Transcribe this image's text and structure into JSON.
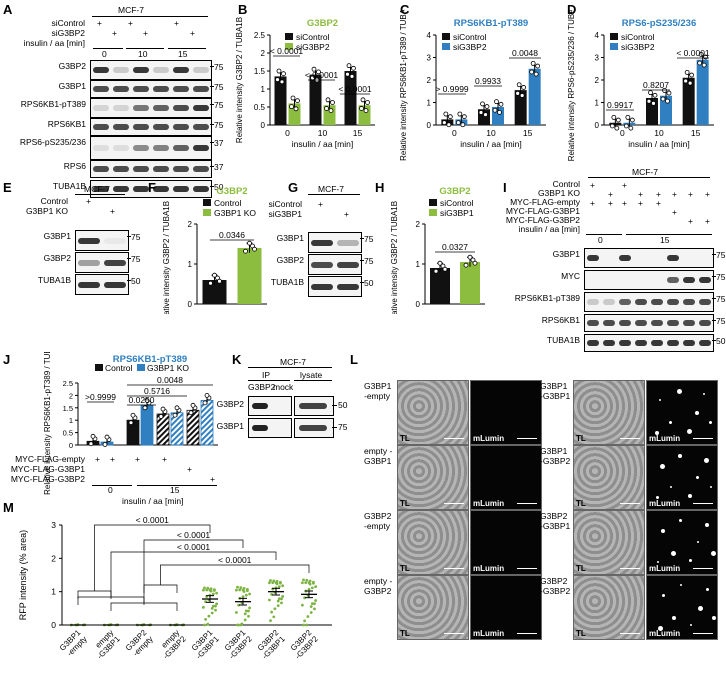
{
  "panels": {
    "A": {
      "letter": "A",
      "cell_line": "MCF-7",
      "conditions": [
        "siControl",
        "siG3BP2",
        "insulin / aa [min]"
      ],
      "siControl_marks": [
        "+",
        "",
        "+",
        "",
        "+",
        ""
      ],
      "siG3BP2_marks": [
        "",
        "+",
        "",
        "+",
        "",
        "+"
      ],
      "times": [
        "0",
        "10",
        "15"
      ],
      "blots": [
        {
          "label": "G3BP2",
          "mw": "75"
        },
        {
          "label": "G3BP1",
          "mw": "75"
        },
        {
          "label": "RPS6KB1-pT389",
          "mw": "75"
        },
        {
          "label": "RPS6KB1",
          "mw": "75"
        },
        {
          "label": "RPS6-pS235/236",
          "mw": "37"
        },
        {
          "label": "RPS6",
          "mw": "37"
        },
        {
          "label": "TUBA1B",
          "mw": "50"
        }
      ]
    },
    "B": {
      "letter": "B",
      "title": "G3BP2",
      "ylabel": "Relative intensity G3BP2 / TUBA1B",
      "xlabel": "insulin / aa [min]",
      "legend": [
        "siControl",
        "siG3BP2"
      ],
      "stats": [
        "< 0.0001",
        "< 0.0001",
        "< 0.0001"
      ]
    },
    "C": {
      "letter": "C",
      "title": "RPS6KB1-pT389",
      "ylabel": "Relative intensity RPS6KB1-pT389 / TUBA1B",
      "xlabel": "insulin / aa [min]",
      "legend": [
        "siControl",
        "siG3BP2"
      ],
      "stats": [
        "> 0.9999",
        "0.9933",
        "0.0048"
      ]
    },
    "D": {
      "letter": "D",
      "title": "RPS6-pS235/236",
      "ylabel": "Relative intensity RPS6-pS235/236 / TUBA1B",
      "xlabel": "insulin / aa [min]",
      "legend": [
        "siControl",
        "siG3BP2"
      ],
      "stats": [
        "0.9917",
        "0.8207",
        "< 0.0001"
      ]
    },
    "E": {
      "letter": "E",
      "cell_line": "MCF-7",
      "conditions": [
        "Control",
        "G3BP1 KO"
      ],
      "blots": [
        {
          "label": "G3BP1",
          "mw": "75"
        },
        {
          "label": "G3BP2",
          "mw": "75"
        },
        {
          "label": "TUBA1B",
          "mw": "50"
        }
      ]
    },
    "F": {
      "letter": "F",
      "title": "G3BP2",
      "ylabel": "Relative intensity G3BP2 / TUBA1B",
      "legend": [
        "Control",
        "G3BP1 KO"
      ],
      "stat": "0.0346"
    },
    "G": {
      "letter": "G",
      "cell_line": "MCF-7",
      "conditions": [
        "siControl",
        "siG3BP1"
      ],
      "blots": [
        {
          "label": "G3BP1",
          "mw": "75"
        },
        {
          "label": "G3BP2",
          "mw": "75"
        },
        {
          "label": "TUBA1B",
          "mw": "50"
        }
      ]
    },
    "H": {
      "letter": "H",
      "title": "G3BP2",
      "ylabel": "Relative intensity G3BP2 / TUBA1B",
      "legend": [
        "siControl",
        "siG3BP1"
      ],
      "stat": "0.0327"
    },
    "I": {
      "letter": "I",
      "cell_line": "MCF-7",
      "conditions": [
        "Control",
        "G3BP1 KO",
        "MYC-FLAG-empty",
        "MYC-FLAG-G3BP1",
        "MYC-FLAG-G3BP2",
        "insulin / aa [min]"
      ],
      "times": [
        "0",
        "15"
      ],
      "blots": [
        {
          "label": "G3BP1",
          "mw": "75"
        },
        {
          "label": "MYC",
          "mw": "75"
        },
        {
          "label": "RPS6KB1-pT389",
          "mw": "75"
        },
        {
          "label": "RPS6KB1",
          "mw": "75"
        },
        {
          "label": "TUBA1B",
          "mw": "50"
        }
      ]
    },
    "J": {
      "letter": "J",
      "title": "RPS6KB1-pT389",
      "ylabel": "Relative intensity RPS6KB1-pT389 / TUBA1B",
      "legend": [
        "Control",
        "G3BP1 KO"
      ],
      "stats": [
        ">0.9999",
        "0.0250",
        "0.5716",
        "0.0048"
      ],
      "conditions": [
        "MYC-FLAG-empty",
        "MYC-FLAG-G3BP1",
        "MYC-FLAG-G3BP2"
      ],
      "xlabel": "insulin / aa [min]",
      "times": [
        "0",
        "15"
      ]
    },
    "K": {
      "letter": "K",
      "cell_line": "MCF-7",
      "headers": [
        "IP",
        "lysate"
      ],
      "subheaders": [
        "G3BP2",
        "mock"
      ],
      "blots": [
        {
          "label": "G3BP2",
          "mw": "50"
        },
        {
          "label": "G3BP1",
          "mw": "75"
        }
      ]
    },
    "L": {
      "letter": "L",
      "rows": [
        {
          "left": "G3BP1 -empty",
          "right": "G3BP1 -G3BP1"
        },
        {
          "left": "empty -G3BP1",
          "right": "G3BP1 -G3BP2"
        },
        {
          "left": "G3BP2 -empty",
          "right": "G3BP2 -G3BP1"
        },
        {
          "left": "empty -G3BP2",
          "right": "G3BP2 -G3BP2"
        }
      ],
      "channels": [
        "TL",
        "mLumin"
      ]
    },
    "M": {
      "letter": "M",
      "ylabel": "RFP intensity (% area)",
      "stats": [
        "< 0.0001",
        "< 0.0001",
        "< 0.0001",
        "< 0.0001"
      ]
    }
  },
  "chart_data": [
    {
      "panel": "B",
      "type": "bar",
      "categories": [
        "0",
        "10",
        "15"
      ],
      "series": [
        {
          "name": "siControl",
          "values": [
            1.35,
            1.4,
            1.5
          ]
        },
        {
          "name": "siG3BP2",
          "values": [
            0.6,
            0.55,
            0.55
          ]
        }
      ],
      "ylim": [
        0,
        2.5
      ],
      "colors": [
        "#111111",
        "#8cbd3f"
      ]
    },
    {
      "panel": "C",
      "type": "bar",
      "categories": [
        "0",
        "10",
        "15"
      ],
      "series": [
        {
          "name": "siControl",
          "values": [
            0.25,
            0.7,
            1.55
          ]
        },
        {
          "name": "siG3BP2",
          "values": [
            0.25,
            0.8,
            2.5
          ]
        }
      ],
      "ylim": [
        0,
        4
      ],
      "colors": [
        "#111111",
        "#2f7fc1"
      ]
    },
    {
      "panel": "D",
      "type": "bar",
      "categories": [
        "0",
        "10",
        "15"
      ],
      "series": [
        {
          "name": "siControl",
          "values": [
            0.1,
            1.2,
            2.1
          ]
        },
        {
          "name": "siG3BP2",
          "values": [
            0.1,
            1.3,
            2.9
          ]
        }
      ],
      "ylim": [
        0,
        4
      ],
      "colors": [
        "#111111",
        "#2f7fc1"
      ]
    },
    {
      "panel": "F",
      "type": "bar",
      "categories": [
        "Control",
        "G3BP1 KO"
      ],
      "values": [
        0.6,
        1.4
      ],
      "ylim": [
        0,
        2
      ],
      "colors": [
        "#111111",
        "#8cbd3f"
      ]
    },
    {
      "panel": "H",
      "type": "bar",
      "categories": [
        "siControl",
        "siG3BP1"
      ],
      "values": [
        0.9,
        1.05
      ],
      "ylim": [
        0,
        2
      ],
      "colors": [
        "#111111",
        "#8cbd3f"
      ]
    },
    {
      "panel": "J",
      "type": "bar",
      "categories": [
        "0 empty",
        "15 empty",
        "15 G3BP1",
        "15 G3BP2"
      ],
      "series": [
        {
          "name": "Control",
          "values": [
            0.15,
            1.0,
            1.25,
            1.4
          ]
        },
        {
          "name": "G3BP1 KO",
          "values": [
            0.12,
            1.6,
            1.3,
            1.8
          ]
        }
      ],
      "ylim": [
        0,
        2.5
      ],
      "colors": [
        "#111111",
        "#2f7fc1"
      ]
    },
    {
      "panel": "M",
      "type": "scatter",
      "categories": [
        "G3BP1 -empty",
        "empty -G3BP1",
        "G3BP2 -empty",
        "empty -G3BP2",
        "G3BP1 -G3BP1",
        "G3BP1 -G3BP2",
        "G3BP2 -G3BP1",
        "G3BP2 -G3BP2"
      ],
      "means": [
        0.0,
        0.0,
        0.0,
        0.0,
        0.78,
        0.7,
        1.0,
        0.92
      ],
      "ylim": [
        0,
        3
      ],
      "yticks": [
        0,
        1,
        2,
        3
      ],
      "color": "#7cb342"
    }
  ]
}
